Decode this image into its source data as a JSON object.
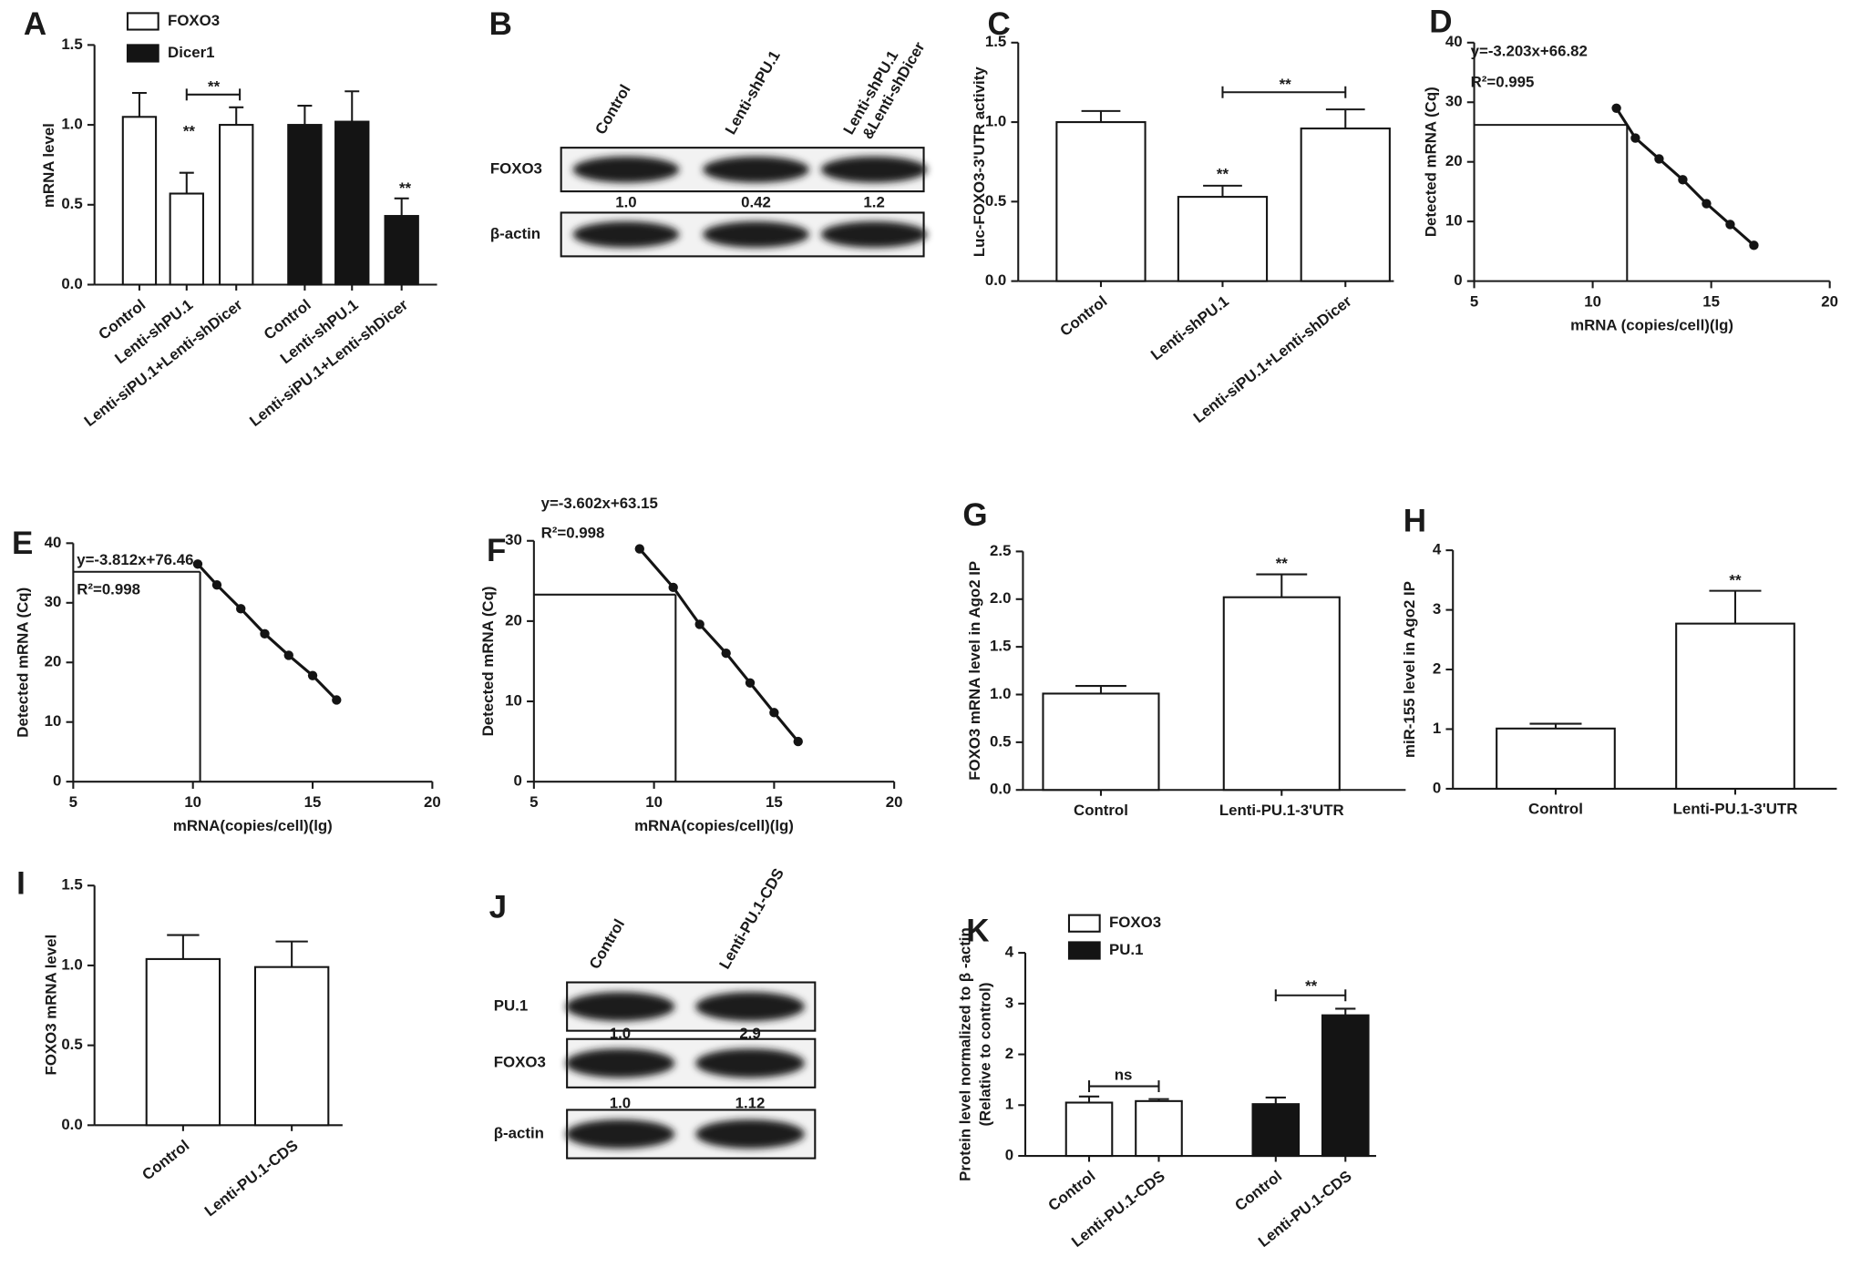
{
  "chart_data": [
    {
      "type": "bar",
      "label": "A",
      "ylabel": "mRNA level",
      "categories": [
        "Control",
        "Lenti-shPU.1",
        "Lenti-siPU.1+Lenti-shDicer",
        "Control",
        "Lenti-shPU.1",
        "Lenti-siPU.1+Lenti-shDicer"
      ],
      "series": [
        {
          "name": "FOXO3",
          "color": "#ffffff",
          "values": [
            1.05,
            0.57,
            1.0,
            null,
            null,
            null
          ],
          "errors": [
            0.15,
            0.13,
            0.11,
            null,
            null,
            null
          ]
        },
        {
          "name": "Dicer1",
          "color": "#141414",
          "values": [
            null,
            null,
            null,
            1.0,
            1.02,
            0.43
          ],
          "errors": [
            null,
            null,
            null,
            0.12,
            0.19,
            0.11
          ]
        }
      ],
      "ylim": [
        0,
        1.5
      ],
      "yticks": [
        {
          "value": 0,
          "label": "0.0"
        },
        0.5,
        {
          "value": 1,
          "label": "1.0"
        },
        1.5
      ],
      "annotations": [
        "**",
        "**",
        "**"
      ]
    },
    {
      "type": "bar",
      "label": "C",
      "ylabel": "Luc-FOXO3-3'UTR activity",
      "categories": [
        "Control",
        "Lenti-shPU.1",
        "Lenti-siPU.1+Lenti-shDicer"
      ],
      "series": [
        {
          "color": "#ffffff",
          "values": [
            1.0,
            0.53,
            0.96
          ],
          "errors": [
            0.07,
            0.07,
            0.12
          ]
        }
      ],
      "ylim": [
        0,
        1.5
      ],
      "yticks": [
        {
          "value": 0,
          "label": "0.0"
        },
        0.5,
        {
          "value": 1,
          "label": "1.0"
        },
        1.5
      ],
      "annotations": [
        "**",
        "**"
      ]
    },
    {
      "type": "line",
      "label": "D",
      "ylabel": "Detected  mRNA (Cq)",
      "xlabel": "mRNA (copies/cell)(lg)",
      "equation": "y=-3.203x+66.82",
      "r_squared": "R²=0.995",
      "x": [
        11,
        11.8,
        12.8,
        13.8,
        14.8,
        15.8,
        16.8
      ],
      "values": [
        29,
        24,
        20.5,
        17,
        13,
        9.5,
        6
      ],
      "color": "#141414",
      "reference_point": [
        11.45,
        26.2
      ],
      "xlim": [
        5,
        20
      ],
      "xticks": [
        5,
        10,
        15,
        20
      ],
      "ylim": [
        0,
        40
      ],
      "yticks": [
        0,
        10,
        20,
        30,
        40
      ]
    },
    {
      "type": "line",
      "label": "E",
      "ylabel": "Detected  mRNA (Cq)",
      "xlabel": "mRNA(copies/cell)(lg)",
      "equation": "y=-3.812x+76.46",
      "r_squared": "R²=0.998",
      "x": [
        10.2,
        11,
        12,
        13,
        14,
        15,
        16
      ],
      "values": [
        36.5,
        33,
        29,
        24.8,
        21.2,
        17.8,
        13.7
      ],
      "color": "#141414",
      "reference_point": [
        10.3,
        35.2
      ],
      "xlim": [
        5,
        20
      ],
      "xticks": [
        5,
        10,
        15,
        20
      ],
      "ylim": [
        0,
        40
      ],
      "yticks": [
        0,
        10,
        20,
        30,
        40
      ]
    },
    {
      "type": "line",
      "label": "F",
      "ylabel": "Detected  mRNA (Cq)",
      "xlabel": "mRNA(copies/cell)(lg)",
      "equation": "y=-3.602x+63.15",
      "r_squared": "R²=0.998",
      "x": [
        9.4,
        10.8,
        11.9,
        13,
        14,
        15,
        16
      ],
      "values": [
        29,
        24.2,
        19.6,
        16,
        12.3,
        8.6,
        5
      ],
      "color": "#141414",
      "reference_point": [
        10.9,
        23.3
      ],
      "xlim": [
        5,
        20
      ],
      "xticks": [
        5,
        10,
        15,
        20
      ],
      "ylim": [
        0,
        30
      ],
      "yticks": [
        0,
        10,
        20,
        30
      ]
    },
    {
      "type": "bar",
      "label": "G",
      "ylabel": "FOXO3 mRNA level in Ago2 IP",
      "categories": [
        "Control",
        "Lenti-PU.1-3'UTR"
      ],
      "series": [
        {
          "color": "#ffffff",
          "values": [
            1.01,
            2.02
          ],
          "errors": [
            0.08,
            0.24
          ]
        }
      ],
      "ylim": [
        0,
        2.5
      ],
      "yticks": [
        {
          "value": 0,
          "label": "0.0"
        },
        0.5,
        {
          "value": 1,
          "label": "1.0"
        },
        1.5,
        {
          "value": 2,
          "label": "2.0"
        },
        2.5
      ],
      "annotations": [
        "**"
      ]
    },
    {
      "type": "bar",
      "label": "H",
      "ylabel": "miR-155 level in Ago2 IP",
      "categories": [
        "Control",
        "Lenti-PU.1-3'UTR"
      ],
      "series": [
        {
          "color": "#ffffff",
          "values": [
            1.01,
            2.77
          ],
          "errors": [
            0.08,
            0.55
          ]
        }
      ],
      "ylim": [
        0,
        4
      ],
      "yticks": [
        0,
        1,
        2,
        3,
        4
      ],
      "annotations": [
        "**"
      ]
    },
    {
      "type": "bar",
      "label": "I",
      "ylabel": "FOXO3 mRNA level",
      "categories": [
        "Control",
        "Lenti-PU.1-CDS"
      ],
      "series": [
        {
          "color": "#ffffff",
          "values": [
            1.04,
            0.99
          ],
          "errors": [
            0.15,
            0.16
          ]
        }
      ],
      "ylim": [
        0,
        1.5
      ],
      "yticks": [
        {
          "value": 0,
          "label": "0.0"
        },
        0.5,
        {
          "value": 1,
          "label": "1.0"
        },
        1.5
      ],
      "annotations": []
    },
    {
      "type": "bar",
      "label": "K",
      "ylabel": [
        "Protein level normalized to β -actin",
        "(Relative to control)"
      ],
      "categories": [
        "Control",
        "Lenti-PU.1-CDS",
        "Control",
        "Lenti-PU.1-CDS"
      ],
      "series": [
        {
          "name": "FOXO3",
          "color": "#ffffff",
          "values": [
            1.05,
            1.08,
            null,
            null
          ],
          "errors": [
            0.12,
            0.04,
            null,
            null
          ]
        },
        {
          "name": "PU.1",
          "color": "#141414",
          "values": [
            null,
            null,
            1.02,
            2.77
          ],
          "errors": [
            null,
            null,
            0.13,
            0.13
          ]
        }
      ],
      "ylim": [
        0,
        4
      ],
      "yticks": [
        0,
        1,
        2,
        3,
        4
      ],
      "annotations": [
        "ns",
        "**"
      ]
    }
  ],
  "blots": [
    {
      "label": "B",
      "lanes": [
        [
          "Control"
        ],
        [
          "Lenti-shPU.1"
        ],
        [
          "Lenti-shPU.1",
          "&Lenti-shDicer"
        ]
      ],
      "rows": [
        {
          "label": "FOXO3",
          "quantities": [
            "1.0",
            "0.42",
            "1.2"
          ]
        },
        {
          "label": "β-actin"
        }
      ]
    },
    {
      "label": "J",
      "lanes": [
        [
          "Control"
        ],
        [
          "Lenti-PU.1-CDS"
        ]
      ],
      "rows": [
        {
          "label": "PU.1",
          "quantities": [
            "1.0",
            "2.9"
          ]
        },
        {
          "label": "FOXO3",
          "quantities": [
            "1.0",
            "1.12"
          ]
        },
        {
          "label": "β-actin"
        }
      ]
    }
  ]
}
